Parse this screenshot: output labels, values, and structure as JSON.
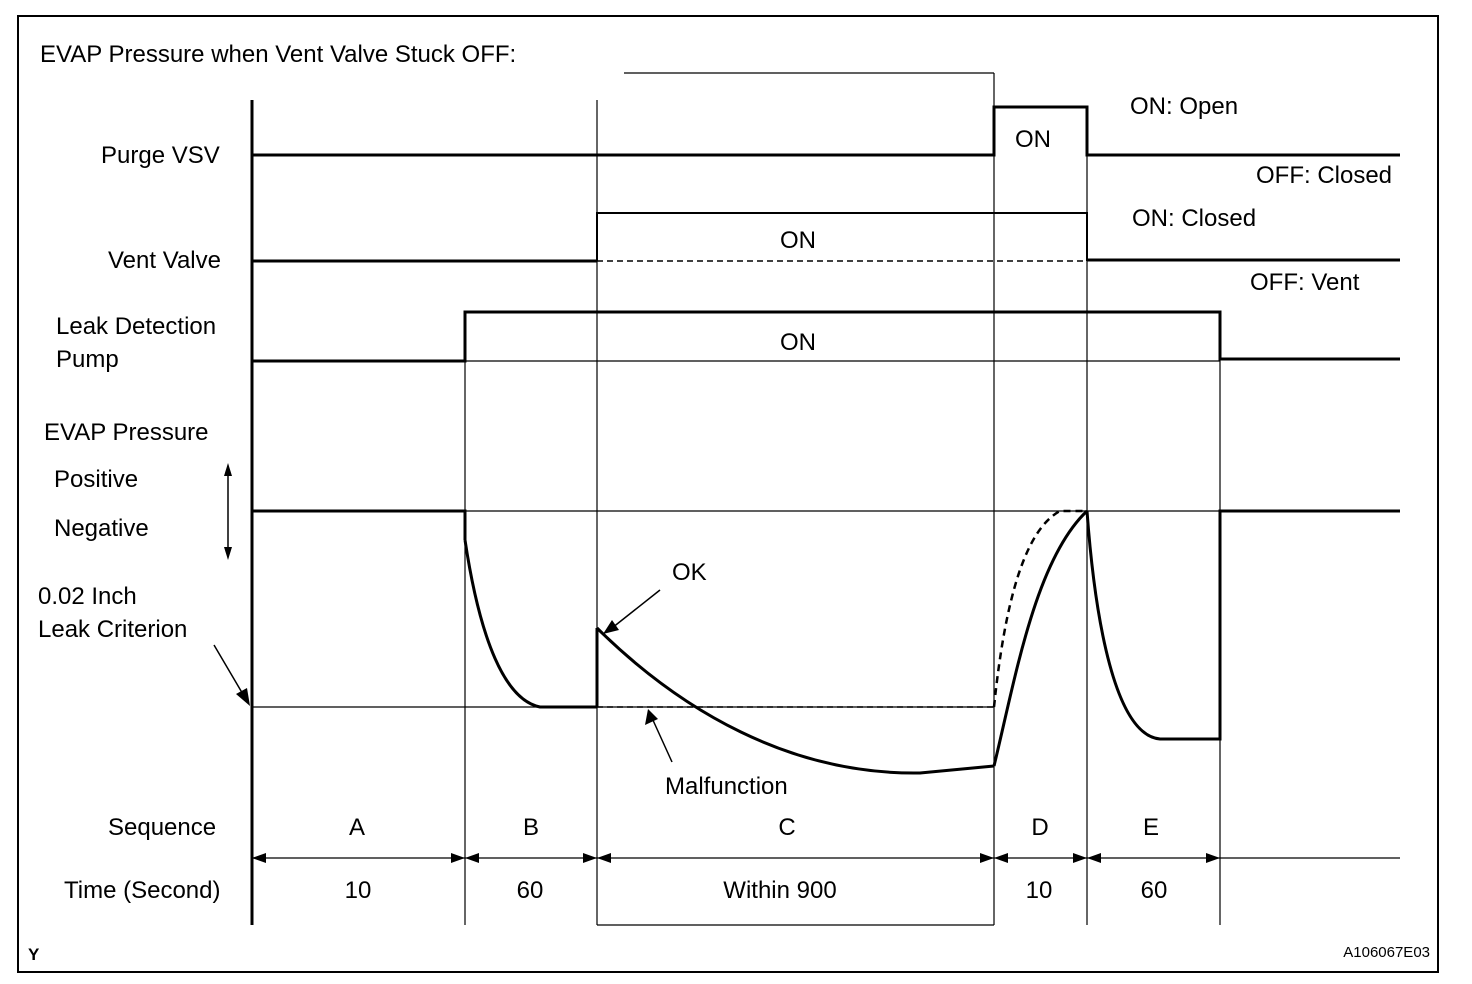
{
  "title": "EVAP Pressure when Vent Valve Stuck OFF:",
  "signals": {
    "purge_vsv": {
      "label": "Purge VSV",
      "pulse_label": "ON",
      "on_state": "ON: Open",
      "off_state": "OFF: Closed"
    },
    "vent_valve": {
      "label": "Vent Valve",
      "pulse_label": "ON",
      "on_state": "ON: Closed",
      "off_state": "OFF: Vent"
    },
    "leak_pump": {
      "label_line1": "Leak Detection",
      "label_line2": "Pump",
      "pulse_label": "ON"
    }
  },
  "pressure": {
    "label": "EVAP Pressure",
    "positive": "Positive",
    "negative": "Negative",
    "criterion_line1": "0.02 Inch",
    "criterion_line2": "Leak Criterion",
    "ok_label": "OK",
    "malfunction_label": "Malfunction"
  },
  "sequence": {
    "label": "Sequence",
    "time_label": "Time (Second)",
    "steps": [
      {
        "id": "A",
        "time": "10"
      },
      {
        "id": "B",
        "time": "60"
      },
      {
        "id": "C",
        "time": "Within 900"
      },
      {
        "id": "D",
        "time": "10"
      },
      {
        "id": "E",
        "time": "60"
      }
    ]
  },
  "footer": {
    "left_mark": "Y",
    "code": "A106067E03"
  }
}
